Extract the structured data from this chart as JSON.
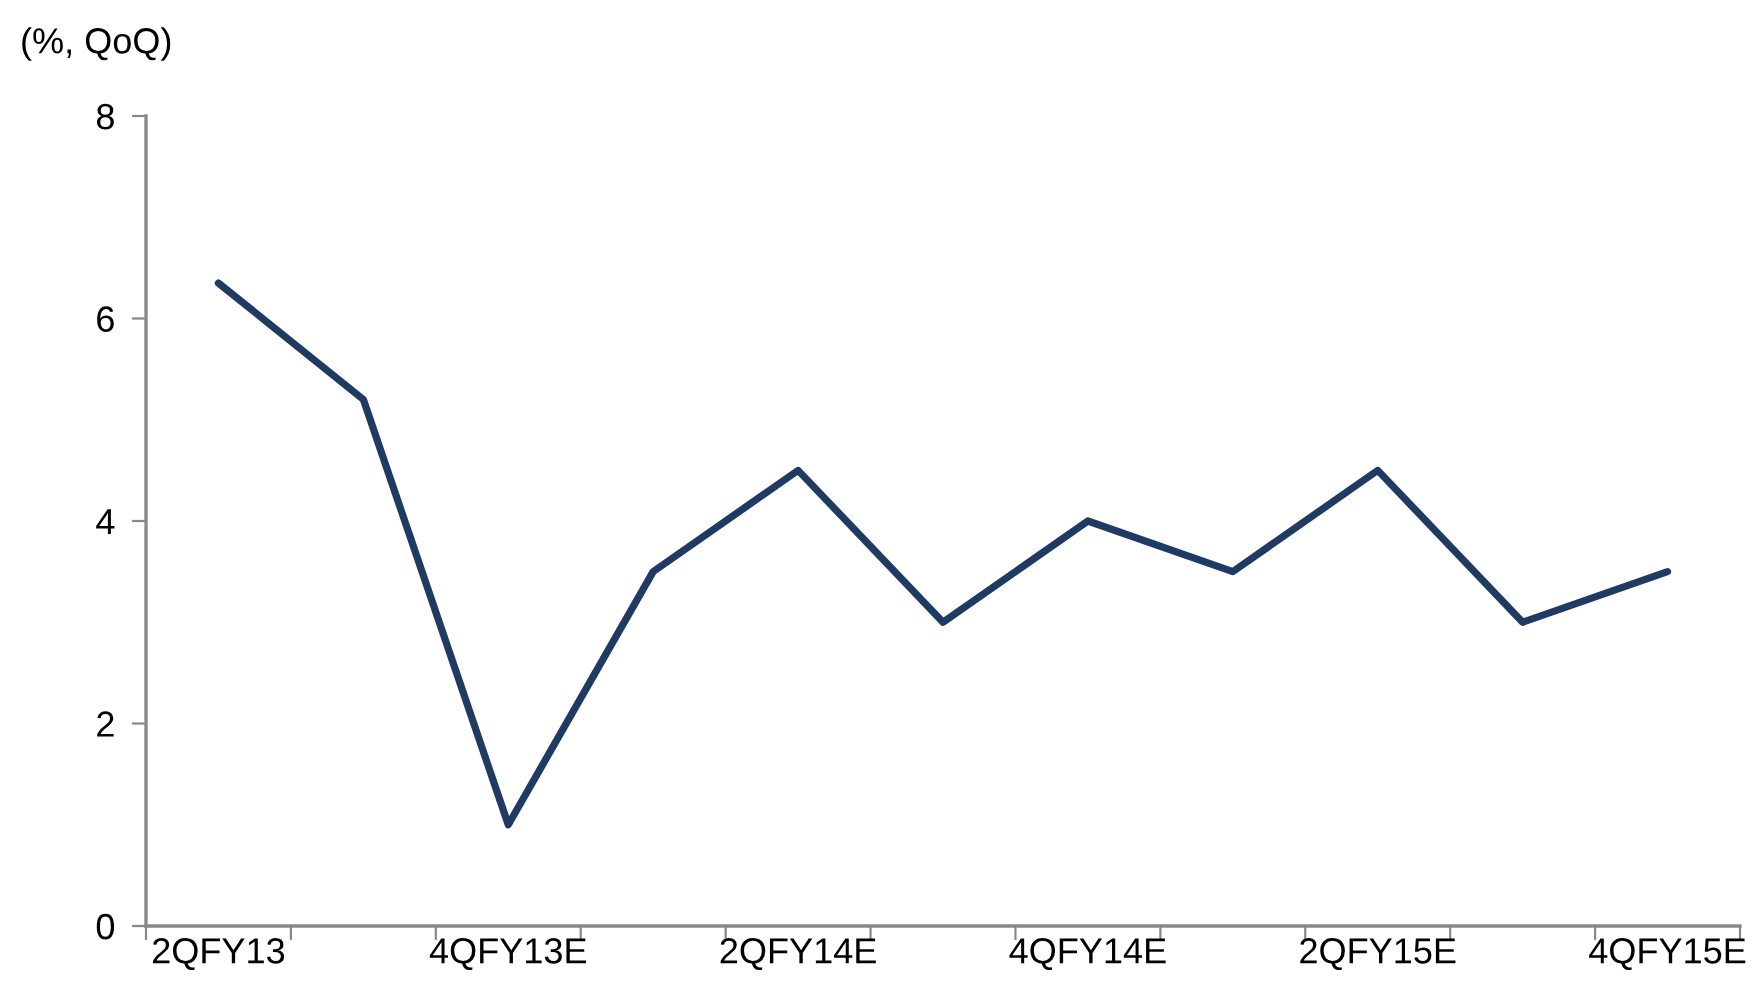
{
  "chart_data": {
    "type": "line",
    "ylabel": "(%, QoQ)",
    "categories": [
      "2QFY13",
      null,
      "4QFY13E",
      null,
      "2QFY14E",
      null,
      "4QFY14E",
      null,
      "2QFY15E",
      null,
      "4QFY15E"
    ],
    "series": [
      {
        "color": "#1f3a63",
        "values": [
          6.35,
          5.2,
          1.0,
          3.5,
          4.5,
          3.0,
          4.0,
          3.5,
          4.5,
          3.0,
          3.5
        ]
      }
    ],
    "ylim": [
      0,
      8
    ],
    "yticks": [
      0,
      2,
      4,
      6,
      8
    ],
    "grid": false,
    "legend": false,
    "marker": "none",
    "line_style": "solid"
  }
}
